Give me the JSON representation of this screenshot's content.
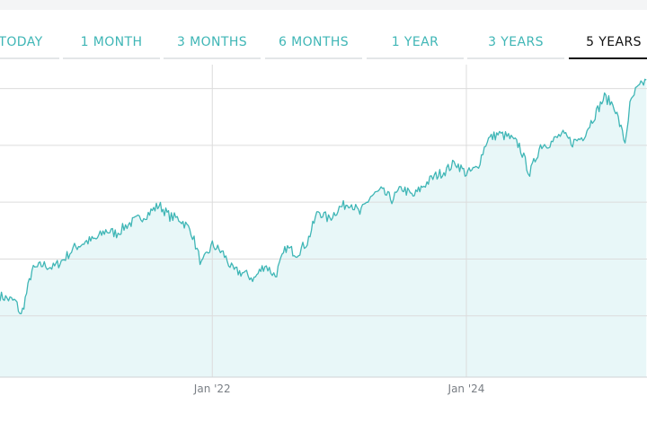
{
  "range_tabs": [
    {
      "label": "TODAY",
      "active": false
    },
    {
      "label": "1 MONTH",
      "active": false
    },
    {
      "label": "3 MONTHS",
      "active": false
    },
    {
      "label": "6 MONTHS",
      "active": false
    },
    {
      "label": "1 YEAR",
      "active": false
    },
    {
      "label": "3 YEARS",
      "active": false
    },
    {
      "label": "5 YEARS",
      "active": true
    }
  ],
  "colors": {
    "line": "#3fb6b6",
    "area": "#e8f7f8",
    "grid": "#dcdcdc",
    "active_tab": "#111111",
    "tab_text": "#3fb6b6"
  },
  "chart_data": {
    "type": "area",
    "title": "",
    "xlabel": "",
    "ylabel": "",
    "x_ticks": [
      "Jan '22",
      "Jan '24"
    ],
    "grid": {
      "horizontal": true,
      "vertical_at_ticks": true
    },
    "legend": "none",
    "ylim": [
      0,
      5.5
    ],
    "y_gridlines": [
      1,
      2,
      3,
      4,
      5
    ],
    "series": [
      {
        "x": [
          "2020-05-01",
          "2020-06-15",
          "2020-07-01",
          "2020-08-01",
          "2020-09-01",
          "2020-10-01",
          "2020-11-01",
          "2020-12-01",
          "2021-01-01",
          "2021-02-01",
          "2021-03-01",
          "2021-04-01",
          "2021-05-01",
          "2021-06-01",
          "2021-07-01",
          "2021-08-01",
          "2021-09-01",
          "2021-10-01",
          "2021-11-01",
          "2021-12-01",
          "2022-01-01",
          "2022-02-01",
          "2022-03-01",
          "2022-04-01",
          "2022-05-01",
          "2022-06-01",
          "2022-07-01",
          "2022-08-01",
          "2022-09-01",
          "2022-10-01",
          "2022-11-01",
          "2022-12-01",
          "2023-01-01",
          "2023-02-01",
          "2023-03-01",
          "2023-04-01",
          "2023-05-01",
          "2023-06-01",
          "2023-07-01",
          "2023-08-01",
          "2023-09-01",
          "2023-10-01",
          "2023-11-01",
          "2023-12-01",
          "2024-01-01",
          "2024-02-01",
          "2024-03-01",
          "2024-04-01",
          "2024-05-01",
          "2024-06-01",
          "2024-07-01",
          "2024-08-01",
          "2024-09-01",
          "2024-10-01",
          "2024-11-01",
          "2024-12-01",
          "2025-01-01",
          "2025-02-01",
          "2025-03-01",
          "2025-04-01",
          "2025-04-15",
          "2025-05-01",
          "2025-06-01"
        ],
        "values": [
          1.35,
          1.25,
          1.0,
          1.8,
          1.9,
          1.85,
          2.0,
          2.2,
          2.3,
          2.35,
          2.5,
          2.45,
          2.6,
          2.7,
          2.8,
          2.95,
          2.75,
          2.7,
          2.5,
          1.9,
          2.25,
          2.1,
          1.8,
          1.75,
          1.65,
          1.9,
          1.7,
          2.2,
          2.1,
          2.3,
          2.85,
          2.7,
          2.9,
          3.0,
          2.8,
          3.1,
          3.2,
          3.05,
          3.25,
          3.1,
          3.3,
          3.45,
          3.55,
          3.7,
          3.5,
          3.6,
          4.1,
          4.2,
          4.15,
          4.0,
          3.5,
          4.0,
          4.05,
          4.2,
          4.05,
          4.15,
          4.5,
          4.85,
          4.7,
          4.05,
          4.7,
          4.95,
          5.15
        ]
      }
    ]
  }
}
